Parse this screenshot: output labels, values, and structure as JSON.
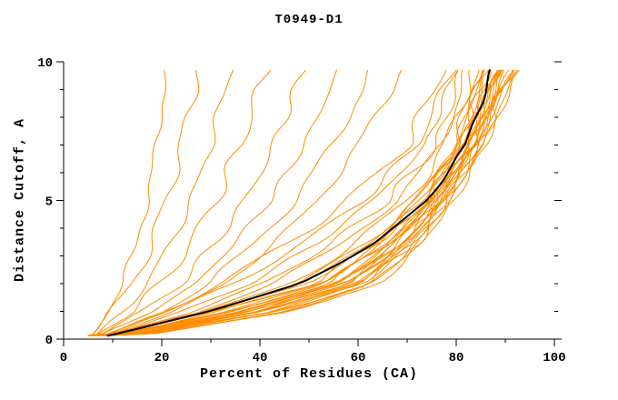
{
  "chart_data": {
    "type": "line",
    "title": "T0949-D1",
    "xlabel": "Percent of Residues (CA)",
    "ylabel": "Distance Cutoff, A",
    "xlim": [
      0,
      100
    ],
    "ylim": [
      0,
      10
    ],
    "grid": false,
    "legend": "none",
    "x_major_ticks": [
      0,
      20,
      40,
      60,
      80,
      100
    ],
    "x_tick_labels": [
      "0",
      "20",
      "40",
      "60",
      "80",
      "100"
    ],
    "x_minor_step": 10,
    "y_major_ticks": [
      0,
      5,
      10
    ],
    "y_tick_labels": [
      "0",
      "5",
      "10"
    ],
    "y_minor_step": 1,
    "colors": {
      "models": "#ff8c00",
      "reference": "#000000",
      "axis": "#000000",
      "background": "#ffffff"
    },
    "origin_x_range": [
      5,
      9
    ],
    "y_anchor_levels": [
      0.2,
      1,
      2,
      3.5,
      5,
      7,
      8.5,
      9.7
    ],
    "reference_series": {
      "name": "highlighted-model",
      "x_at_levels": [
        11,
        30,
        48,
        64,
        74,
        82,
        85,
        87
      ]
    },
    "series": [
      {
        "x_at_levels": [
          6,
          9,
          12,
          15,
          17,
          19,
          20,
          21
        ]
      },
      {
        "x_at_levels": [
          6,
          10,
          14,
          18,
          21,
          24,
          26,
          27
        ]
      },
      {
        "x_at_levels": [
          7,
          12,
          17,
          22,
          26,
          30,
          32,
          34
        ]
      },
      {
        "x_at_levels": [
          7,
          14,
          20,
          26,
          31,
          36,
          39,
          41
        ]
      },
      {
        "x_at_levels": [
          8,
          16,
          24,
          31,
          37,
          43,
          46,
          49
        ]
      },
      {
        "x_at_levels": [
          8,
          18,
          27,
          35,
          42,
          49,
          53,
          56
        ]
      },
      {
        "x_at_levels": [
          9,
          20,
          30,
          39,
          47,
          55,
          59,
          63
        ]
      },
      {
        "x_at_levels": [
          9,
          22,
          33,
          43,
          52,
          60,
          65,
          69
        ]
      },
      {
        "x_at_levels": [
          10,
          20,
          32,
          46,
          58,
          70,
          74,
          77
        ]
      },
      {
        "x_at_levels": [
          10,
          22,
          35,
          49,
          61,
          72,
          76,
          79
        ]
      },
      {
        "x_at_levels": [
          11,
          24,
          38,
          52,
          63,
          74,
          77,
          80
        ]
      },
      {
        "x_at_levels": [
          11,
          26,
          41,
          55,
          66,
          76,
          79,
          81
        ]
      },
      {
        "x_at_levels": [
          12,
          28,
          43,
          57,
          68,
          77,
          80,
          82
        ]
      },
      {
        "x_at_levels": [
          12,
          30,
          46,
          60,
          70,
          78,
          81,
          83
        ]
      },
      {
        "x_at_levels": [
          10,
          28,
          48,
          62,
          72,
          80,
          82,
          84
        ]
      },
      {
        "x_at_levels": [
          11,
          30,
          50,
          63,
          73,
          80,
          83,
          85
        ]
      },
      {
        "x_at_levels": [
          11,
          31,
          51,
          64,
          73,
          81,
          83,
          86
        ]
      },
      {
        "x_at_levels": [
          12,
          33,
          53,
          65,
          74,
          81,
          84,
          86
        ]
      },
      {
        "x_at_levels": [
          12,
          34,
          54,
          66,
          74,
          82,
          84,
          87
        ]
      },
      {
        "x_at_levels": [
          13,
          35,
          55,
          67,
          75,
          82,
          85,
          87
        ]
      },
      {
        "x_at_levels": [
          13,
          36,
          56,
          67,
          75,
          82,
          85,
          88
        ]
      },
      {
        "x_at_levels": [
          14,
          37,
          57,
          68,
          76,
          83,
          86,
          88
        ]
      },
      {
        "x_at_levels": [
          14,
          38,
          58,
          69,
          76,
          83,
          86,
          89
        ]
      },
      {
        "x_at_levels": [
          15,
          39,
          58,
          69,
          76,
          83,
          86,
          89
        ]
      },
      {
        "x_at_levels": [
          15,
          40,
          59,
          70,
          77,
          84,
          87,
          90
        ]
      },
      {
        "x_at_levels": [
          16,
          41,
          60,
          70,
          77,
          84,
          87,
          90
        ]
      },
      {
        "x_at_levels": [
          16,
          42,
          61,
          71,
          77,
          84,
          87,
          91
        ]
      },
      {
        "x_at_levels": [
          17,
          43,
          61,
          71,
          78,
          85,
          88,
          91
        ]
      },
      {
        "x_at_levels": [
          17,
          44,
          62,
          72,
          78,
          85,
          88,
          92
        ]
      },
      {
        "x_at_levels": [
          18,
          45,
          63,
          72,
          78,
          85,
          88,
          92
        ]
      },
      {
        "x_at_levels": [
          18,
          46,
          63,
          73,
          79,
          86,
          89,
          93
        ]
      },
      {
        "x_at_levels": [
          19,
          47,
          64,
          73,
          79,
          86,
          89,
          93
        ]
      },
      {
        "x_at_levels": [
          10,
          29,
          49,
          63,
          72,
          80,
          83,
          85
        ]
      },
      {
        "x_at_levels": [
          12,
          32,
          52,
          65,
          74,
          81,
          84,
          86
        ]
      },
      {
        "x_at_levels": [
          13,
          34,
          54,
          66,
          75,
          82,
          85,
          88
        ]
      },
      {
        "x_at_levels": [
          14,
          36,
          56,
          68,
          75,
          83,
          86,
          89
        ]
      },
      {
        "x_at_levels": [
          15,
          38,
          57,
          69,
          76,
          83,
          87,
          90
        ]
      },
      {
        "x_at_levels": [
          16,
          40,
          59,
          70,
          77,
          84,
          87,
          91
        ]
      }
    ]
  }
}
